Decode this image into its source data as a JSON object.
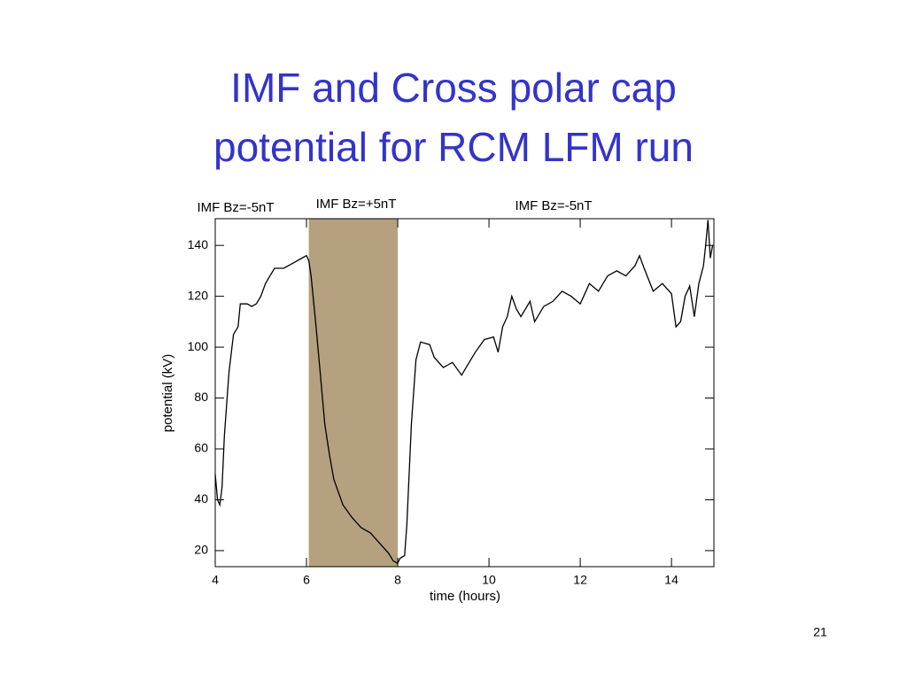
{
  "page_number": "21",
  "chart_data": {
    "type": "line",
    "title": [
      "IMF and Cross polar cap",
      "potential for RCM LFM run"
    ],
    "annotations": [
      "IMF Bz=-5nT",
      "IMF Bz=+5nT",
      "IMF Bz=-5nT"
    ],
    "x_label": "time (hours)",
    "y_label": "potential (kV)",
    "shade": {
      "range": [
        6.05,
        8.0
      ],
      "color": "#b5a07f"
    },
    "xlim": [
      4,
      14.93
    ],
    "xticks": [
      4,
      6,
      8,
      10,
      12,
      14
    ],
    "ylim": [
      13.7,
      150.5
    ],
    "yticks": [
      20,
      40,
      60,
      80,
      100,
      120,
      140
    ],
    "series": [
      {
        "color": "#000000",
        "x": [
          4.0,
          4.05,
          4.1,
          4.15,
          4.2,
          4.3,
          4.4,
          4.5,
          4.55,
          4.7,
          4.8,
          4.9,
          5.0,
          5.1,
          5.2,
          5.3,
          5.5,
          5.7,
          5.9,
          6.0,
          6.05,
          6.1,
          6.2,
          6.3,
          6.4,
          6.5,
          6.6,
          6.8,
          7.0,
          7.2,
          7.4,
          7.6,
          7.8,
          7.9,
          8.0,
          8.05,
          8.15,
          8.2,
          8.3,
          8.4,
          8.5,
          8.7,
          8.8,
          9.0,
          9.2,
          9.4,
          9.5,
          9.7,
          9.9,
          10.1,
          10.2,
          10.3,
          10.4,
          10.5,
          10.6,
          10.7,
          10.9,
          11.0,
          11.2,
          11.4,
          11.6,
          11.8,
          12.0,
          12.2,
          12.4,
          12.6,
          12.8,
          13.0,
          13.2,
          13.3,
          13.4,
          13.6,
          13.8,
          14.0,
          14.1,
          14.2,
          14.3,
          14.4,
          14.5,
          14.6,
          14.7,
          14.75,
          14.8,
          14.85,
          14.9
        ],
        "values": [
          50,
          40,
          38,
          45,
          65,
          90,
          105,
          108,
          117,
          117,
          116,
          117,
          120,
          125,
          128,
          131,
          131,
          133,
          135,
          136,
          134,
          128,
          110,
          90,
          70,
          58,
          48,
          38,
          33,
          29,
          27,
          23,
          19,
          16,
          15,
          17,
          18,
          30,
          70,
          95,
          102,
          101,
          96,
          92,
          94,
          89,
          92,
          98,
          103,
          104,
          98,
          108,
          112,
          120,
          115,
          112,
          118,
          110,
          116,
          118,
          122,
          120,
          117,
          125,
          122,
          128,
          130,
          128,
          132,
          136,
          131,
          122,
          125,
          121,
          108,
          110,
          120,
          124,
          112,
          125,
          132,
          140,
          150,
          135,
          140
        ]
      }
    ]
  }
}
